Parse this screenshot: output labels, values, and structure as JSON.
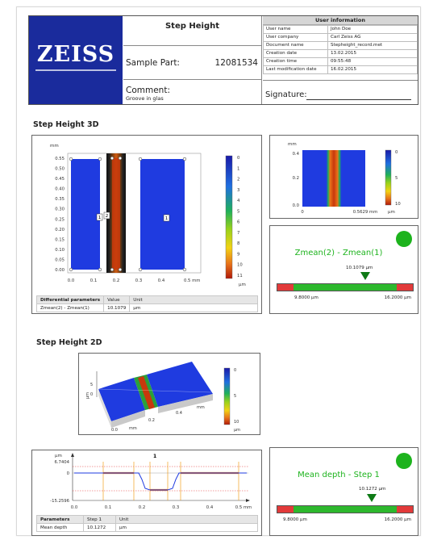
{
  "header": {
    "logo_text": "ZEISS",
    "title": "Step Height",
    "sample_label": "Sample Part:",
    "sample_value": "12081534",
    "comment_label": "Comment:",
    "comment_value": "Groove in glas",
    "signature_label": "Signature:"
  },
  "user_info": {
    "title": "User information",
    "rows": [
      {
        "label": "User name",
        "value": "John Doe"
      },
      {
        "label": "User company",
        "value": "Carl Zeiss AG"
      },
      {
        "label": "Document name",
        "value": "Stepheight_record.met"
      },
      {
        "label": "Creation date",
        "value": "13.02.2015"
      },
      {
        "label": "Creation time",
        "value": "09:55:48"
      },
      {
        "label": "Last modification date",
        "value": "16.02.2015"
      }
    ]
  },
  "section_3d": {
    "title": "Step Height 3D",
    "unit_mm": "mm",
    "unit_um": "µm",
    "y_ticks": [
      "0.55",
      "0.50",
      "0.45",
      "0.40",
      "0.35",
      "0.30",
      "0.25",
      "0.20",
      "0.15",
      "0.10",
      "0.05",
      "0.00"
    ],
    "x_ticks": [
      "0.0",
      "0.1",
      "0.2",
      "0.3",
      "0.4",
      "0.5 mm"
    ],
    "color_ticks": [
      "0",
      "1",
      "2",
      "3",
      "4",
      "5",
      "6",
      "7",
      "8",
      "9",
      "10",
      "11"
    ],
    "region_labels": [
      "1",
      "2",
      "1"
    ],
    "params_header": [
      "Differential parameters",
      "Value",
      "Unit"
    ],
    "params_row": [
      "Zmean(2) - Zmean(1)",
      "10.1079",
      "µm"
    ]
  },
  "thumb_3d": {
    "unit_mm": "mm",
    "y_ticks": [
      "0.4",
      "0.2",
      "0.0"
    ],
    "x_ticks": [
      "0",
      "0.5629 mm"
    ],
    "color_ticks": [
      "0",
      "5",
      "10"
    ],
    "unit_um": "µm"
  },
  "tolerance_1": {
    "title": "Zmean(2) - Zmean(1)",
    "value": "10.1079 µm",
    "min": "9.8000 µm",
    "max": "16.2000 µm",
    "status_color": "#1db31d"
  },
  "section_2d": {
    "title": "Step Height 2D",
    "axis_labels": [
      "µm",
      "mm",
      "µm",
      "mm"
    ],
    "x_ticks": [
      "0.0",
      "0.2",
      "0.4"
    ],
    "y_ticks": [
      "0",
      "5"
    ],
    "color_ticks": [
      "0",
      "5",
      "10"
    ],
    "unit_um": "µm"
  },
  "profile": {
    "unit": "µm",
    "marker": "1",
    "y_ticks": [
      "6.7404",
      "0",
      "-15.2596"
    ],
    "x_ticks": [
      "0.0",
      "0.1",
      "0.2",
      "0.3",
      "0.4",
      "0.5 mm"
    ],
    "params_header": [
      "Parameters",
      "Step 1",
      "Unit"
    ],
    "params_row": [
      "Mean depth",
      "10.1272",
      "µm"
    ]
  },
  "tolerance_2": {
    "title": "Mean depth - Step 1",
    "value": "10.1272 µm",
    "min": "9.8000 µm",
    "max": "16.2000 µm",
    "status_color": "#1db31d"
  },
  "colors": {
    "zeiss_blue": "#1a2b9c",
    "pass_green": "#1db31d",
    "bar_green": "#2db82d",
    "bar_red": "#e23a3a",
    "plate_blue": "#1f3be0"
  }
}
